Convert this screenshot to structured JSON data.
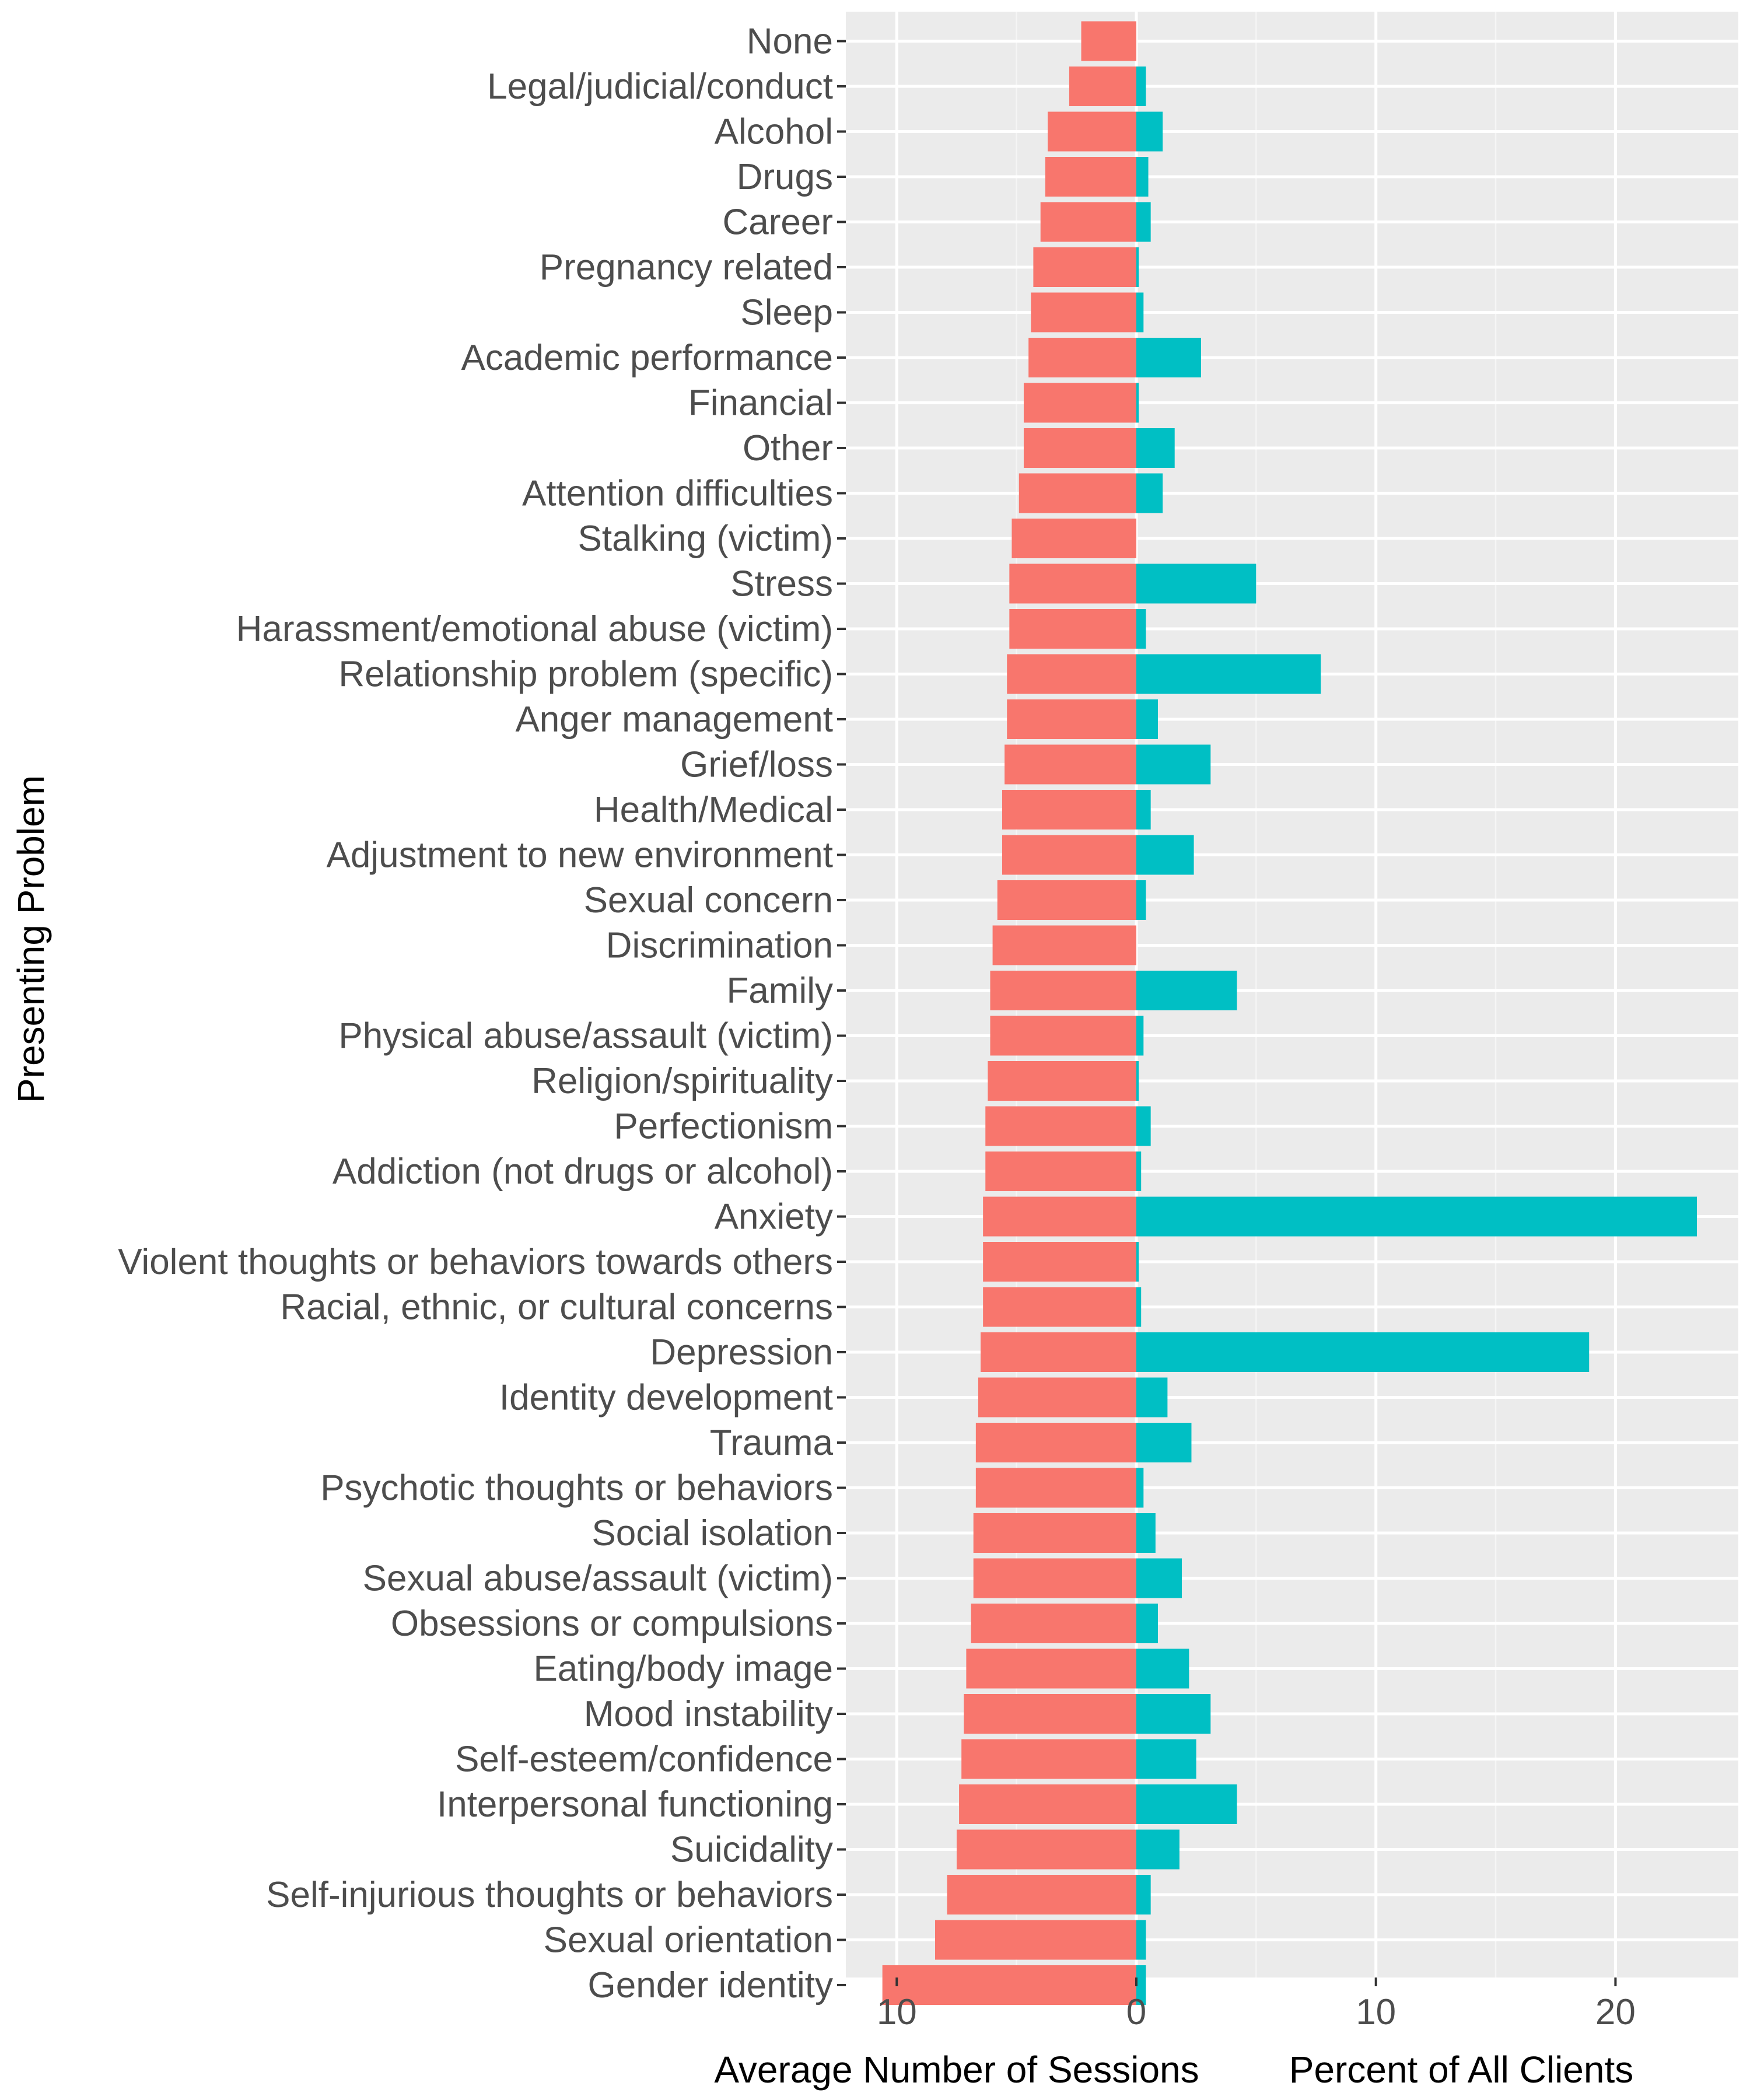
{
  "chart_data": {
    "type": "bar",
    "orientation": "horizontal-diverging",
    "ylabel": "Presenting Problem",
    "xlabel_left": "Average Number of Sessions",
    "xlabel_right": "Percent of All Clients",
    "xlim": [
      -12,
      25
    ],
    "xticks": [
      {
        "value": -10,
        "label": "10"
      },
      {
        "value": 0,
        "label": "0"
      },
      {
        "value": 10,
        "label": "10"
      },
      {
        "value": 20,
        "label": "20"
      }
    ],
    "categories": [
      "None",
      "Legal/judicial/conduct",
      "Alcohol",
      "Drugs",
      "Career",
      "Pregnancy related",
      "Sleep",
      "Academic performance",
      "Financial",
      "Other",
      "Attention difficulties",
      "Stalking (victim)",
      "Stress",
      "Harassment/emotional abuse (victim)",
      "Relationship problem (specific)",
      "Anger management",
      "Grief/loss",
      "Health/Medical",
      "Adjustment to new environment",
      "Sexual concern",
      "Discrimination",
      "Family",
      "Physical abuse/assault (victim)",
      "Religion/spirituality",
      "Perfectionism",
      "Addiction (not drugs or alcohol)",
      "Anxiety",
      "Violent thoughts or behaviors towards others",
      "Racial, ethnic, or cultural concerns",
      "Depression",
      "Identity development",
      "Trauma",
      "Psychotic thoughts or behaviors",
      "Social isolation",
      "Sexual abuse/assault (victim)",
      "Obsessions or compulsions",
      "Eating/body image",
      "Mood instability",
      "Self-esteem/confidence",
      "Interpersonal functioning",
      "Suicidality",
      "Self-injurious thoughts or behaviors",
      "Sexual orientation",
      "Gender identity"
    ],
    "series": [
      {
        "name": "Average Number of Sessions",
        "color": "#F8766D",
        "direction": "left",
        "values": [
          2.3,
          2.8,
          3.7,
          3.8,
          4.0,
          4.3,
          4.4,
          4.5,
          4.7,
          4.7,
          4.9,
          5.2,
          5.3,
          5.3,
          5.4,
          5.4,
          5.5,
          5.6,
          5.6,
          5.8,
          6.0,
          6.1,
          6.1,
          6.2,
          6.3,
          6.3,
          6.4,
          6.4,
          6.4,
          6.5,
          6.6,
          6.7,
          6.7,
          6.8,
          6.8,
          6.9,
          7.1,
          7.2,
          7.3,
          7.4,
          7.5,
          7.9,
          8.4,
          10.6
        ]
      },
      {
        "name": "Percent of All Clients",
        "color": "#00BFC4",
        "direction": "right",
        "values": [
          0.0,
          0.4,
          1.1,
          0.5,
          0.6,
          0.1,
          0.3,
          2.7,
          0.1,
          1.6,
          1.1,
          0.0,
          5.0,
          0.4,
          7.7,
          0.9,
          3.1,
          0.6,
          2.4,
          0.4,
          0.0,
          4.2,
          0.3,
          0.1,
          0.6,
          0.2,
          23.4,
          0.1,
          0.2,
          18.9,
          1.3,
          2.3,
          0.3,
          0.8,
          1.9,
          0.9,
          2.2,
          3.1,
          2.5,
          4.2,
          1.8,
          0.6,
          0.4,
          0.4
        ]
      }
    ],
    "grid": true,
    "legend": "none",
    "panel_background": "#EBEBEB"
  }
}
